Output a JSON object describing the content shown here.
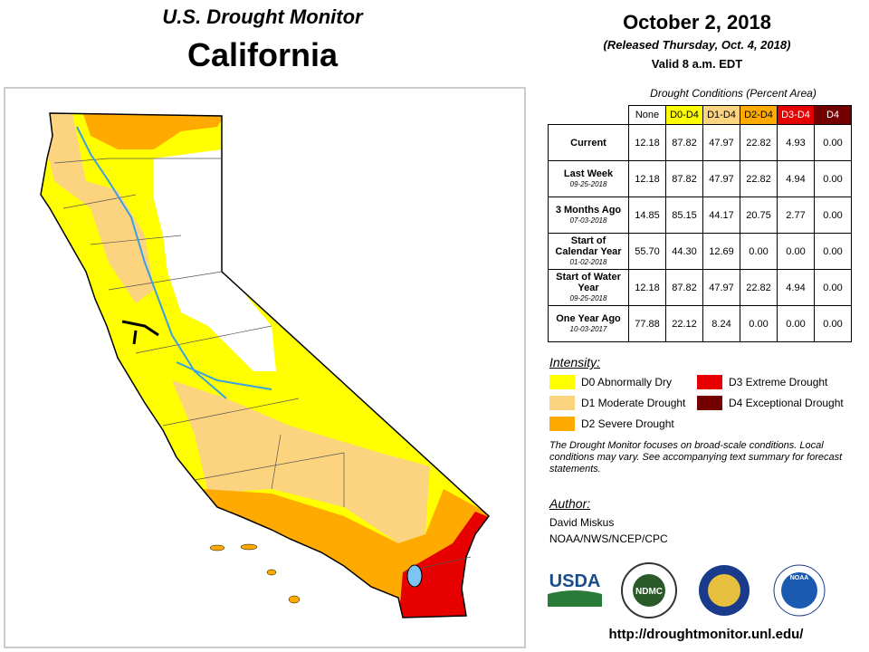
{
  "header": {
    "title": "U.S. Drought Monitor",
    "state": "California",
    "date": "October 2, 2018",
    "released": "(Released Thursday, Oct. 4, 2018)",
    "valid": "Valid 8 a.m. EDT"
  },
  "table": {
    "caption": "Drought Conditions (Percent Area)",
    "columns": [
      {
        "label": "None",
        "color": "#ffffff",
        "text_color": "#000000"
      },
      {
        "label": "D0-D4",
        "color": "#ffff00",
        "text_color": "#000000"
      },
      {
        "label": "D1-D4",
        "color": "#fcd37f",
        "text_color": "#000000"
      },
      {
        "label": "D2-D4",
        "color": "#ffaa00",
        "text_color": "#000000"
      },
      {
        "label": "D3-D4",
        "color": "#e60000",
        "text_color": "#ffffff"
      },
      {
        "label": "D4",
        "color": "#730000",
        "text_color": "#ffffff"
      }
    ],
    "rows": [
      {
        "label": "Current",
        "values": [
          "12.18",
          "87.82",
          "47.97",
          "22.82",
          "4.93",
          "0.00"
        ]
      },
      {
        "label": "Last Week",
        "date": "09-25-2018",
        "values": [
          "12.18",
          "87.82",
          "47.97",
          "22.82",
          "4.94",
          "0.00"
        ]
      },
      {
        "label": "3 Months Ago",
        "date": "07-03-2018",
        "values": [
          "14.85",
          "85.15",
          "44.17",
          "20.75",
          "2.77",
          "0.00"
        ]
      },
      {
        "label": "Start of Calendar Year",
        "date": "01-02-2018",
        "values": [
          "55.70",
          "44.30",
          "12.69",
          "0.00",
          "0.00",
          "0.00"
        ]
      },
      {
        "label": "Start of Water Year",
        "date": "09-25-2018",
        "values": [
          "12.18",
          "87.82",
          "47.97",
          "22.82",
          "4.94",
          "0.00"
        ]
      },
      {
        "label": "One Year Ago",
        "date": "10-03-2017",
        "values": [
          "77.88",
          "22.12",
          "8.24",
          "0.00",
          "0.00",
          "0.00"
        ]
      }
    ]
  },
  "legend": {
    "title": "Intensity:",
    "items": [
      {
        "label": "D0 Abnormally Dry",
        "color": "#ffff00"
      },
      {
        "label": "D1 Moderate Drought",
        "color": "#fcd37f"
      },
      {
        "label": "D2 Severe Drought",
        "color": "#ffaa00"
      },
      {
        "label": "D3 Extreme Drought",
        "color": "#e60000"
      },
      {
        "label": "D4 Exceptional Drought",
        "color": "#730000"
      }
    ]
  },
  "note": "The Drought Monitor focuses on broad-scale conditions. Local conditions may vary. See accompanying text summary for forecast statements.",
  "author": {
    "title": "Author:",
    "name": "David Miskus",
    "org": "NOAA/NWS/NCEP/CPC"
  },
  "logos": [
    "USDA",
    "NDMC",
    "NOAA"
  ],
  "url": "http://droughtmonitor.unl.edu/"
}
